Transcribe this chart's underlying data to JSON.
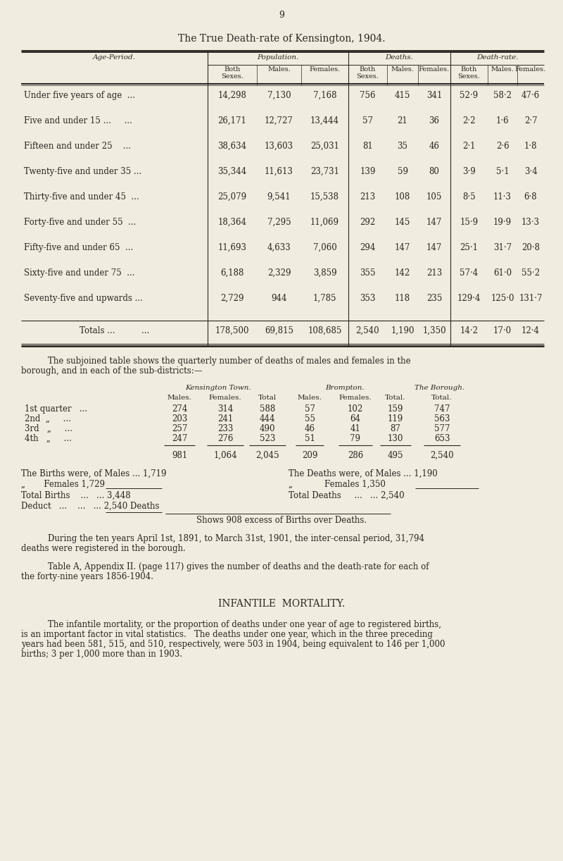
{
  "page_number": "9",
  "bg_color": "#f0ede0",
  "title": "The True Death-rate of Kensington, 1904.",
  "table1_rows": [
    [
      "Under five years of age  ...",
      "14,298",
      "7,130",
      "7,168",
      "756",
      "415",
      "341",
      "52·9",
      "58·2",
      "47·6"
    ],
    [
      "Five and under 15 ...     ...",
      "26,171",
      "12,727",
      "13,444",
      "57",
      "21",
      "36",
      "2·2",
      "1·6",
      "2·7"
    ],
    [
      "Fifteen and under 25    ...",
      "38,634",
      "13,603",
      "25,031",
      "81",
      "35",
      "46",
      "2·1",
      "2·6",
      "1·8"
    ],
    [
      "Twenty-five and under 35 ...",
      "35,344",
      "11,613",
      "23,731",
      "139",
      "59",
      "80",
      "3·9",
      "5·1",
      "3·4"
    ],
    [
      "Thirty-five and under 45  ...",
      "25,079",
      "9,541",
      "15,538",
      "213",
      "108",
      "105",
      "8·5",
      "11·3",
      "6·8"
    ],
    [
      "Forty-five and under 55  ...",
      "18,364",
      "7,295",
      "11,069",
      "292",
      "145",
      "147",
      "15·9",
      "19·9",
      "13·3"
    ],
    [
      "Fifty-five and under 65  ...",
      "11,693",
      "4,633",
      "7,060",
      "294",
      "147",
      "147",
      "25·1",
      "31·7",
      "20·8"
    ],
    [
      "Sixty-five and under 75  ...",
      "6,188",
      "2,329",
      "3,859",
      "355",
      "142",
      "213",
      "57·4",
      "61·0",
      "55·2"
    ],
    [
      "Seventy-five and upwards ...",
      "2,729",
      "944",
      "1,785",
      "353",
      "118",
      "235",
      "129·4",
      "125·0",
      "131·7"
    ]
  ],
  "table1_totals": [
    "Totals ...          ...",
    "178,500",
    "69,815",
    "108,685",
    "2,540",
    "1,190",
    "1,350",
    "14·2",
    "17·0",
    "12·4"
  ],
  "table2_rows": [
    [
      "274",
      "314",
      "588",
      "57",
      "102",
      "159",
      "747"
    ],
    [
      "203",
      "241",
      "444",
      "55",
      "64",
      "119",
      "563"
    ],
    [
      "257",
      "233",
      "490",
      "46",
      "41",
      "87",
      "577"
    ],
    [
      "247",
      "276",
      "523",
      "51",
      "79",
      "130",
      "653"
    ]
  ],
  "table2_totals": [
    "981",
    "1,064",
    "2,045",
    "209",
    "286",
    "495",
    "2,540"
  ],
  "shows_line": "Shows 908 excess of Births over Deaths.",
  "para2": "During the ten years April 1st, 1891, to March 31st, 1901, the inter-censal period, 31,794\ndeaths were registered in the borough.",
  "para3": "Table A, Appendix II. (page 117) gives the number of deaths and the death-rate for each of\nthe forty-nine years 1856-1904.",
  "section_title": "INFANTILE  MORTALITY.",
  "para4": "The infantile mortality, or the proportion of deaths under one year of age to registered births,\nis an important factor in vital statistics.   The deaths under one year, which in the three preceding\nyears had been 581, 515, and 510, respectively, were 503 in 1904, being equivalent to 146 per 1,000\nbirths; 3 per 1,000 more than in 1903."
}
